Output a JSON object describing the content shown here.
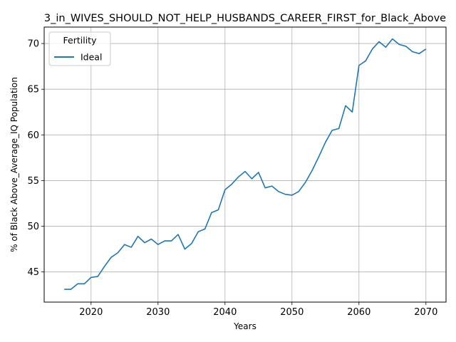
{
  "chart_data": {
    "type": "line",
    "title": "3_in_WIVES_SHOULD_NOT_HELP_HUSBANDS_CAREER_FIRST_for_Black_Above",
    "xlabel": "Years",
    "ylabel": "% of Black Above_Average_IQ Population",
    "xlim": [
      2013,
      2073
    ],
    "ylim": [
      41.7,
      71.8
    ],
    "xticks": [
      2020,
      2030,
      2040,
      2050,
      2060,
      2070
    ],
    "yticks": [
      45,
      50,
      55,
      60,
      65,
      70
    ],
    "grid": true,
    "legend": {
      "title": "Fertility",
      "placement": "top-left"
    },
    "series": [
      {
        "name": "Ideal",
        "color": "#1f77b4",
        "x": [
          2016,
          2017,
          2018,
          2019,
          2020,
          2021,
          2022,
          2023,
          2024,
          2025,
          2026,
          2027,
          2028,
          2029,
          2030,
          2031,
          2032,
          2033,
          2034,
          2035,
          2036,
          2037,
          2038,
          2039,
          2040,
          2041,
          2042,
          2043,
          2044,
          2045,
          2046,
          2047,
          2048,
          2049,
          2050,
          2051,
          2052,
          2053,
          2054,
          2055,
          2056,
          2057,
          2058,
          2059,
          2060,
          2061,
          2062,
          2063,
          2064,
          2065,
          2066,
          2067,
          2068,
          2069,
          2070
        ],
        "y": [
          43.1,
          43.1,
          43.7,
          43.7,
          44.4,
          44.5,
          45.6,
          46.6,
          47.1,
          48.0,
          47.7,
          48.9,
          48.2,
          48.6,
          48.0,
          48.4,
          48.4,
          49.1,
          47.5,
          48.1,
          49.4,
          49.7,
          51.5,
          51.8,
          54.0,
          54.6,
          55.4,
          56.0,
          55.2,
          55.9,
          54.2,
          54.4,
          53.8,
          53.5,
          53.4,
          53.8,
          54.8,
          56.1,
          57.6,
          59.2,
          60.5,
          60.7,
          63.2,
          62.5,
          67.6,
          68.1,
          69.4,
          70.2,
          69.6,
          70.5,
          69.9,
          69.7,
          69.1,
          68.9,
          69.4
        ]
      }
    ]
  }
}
